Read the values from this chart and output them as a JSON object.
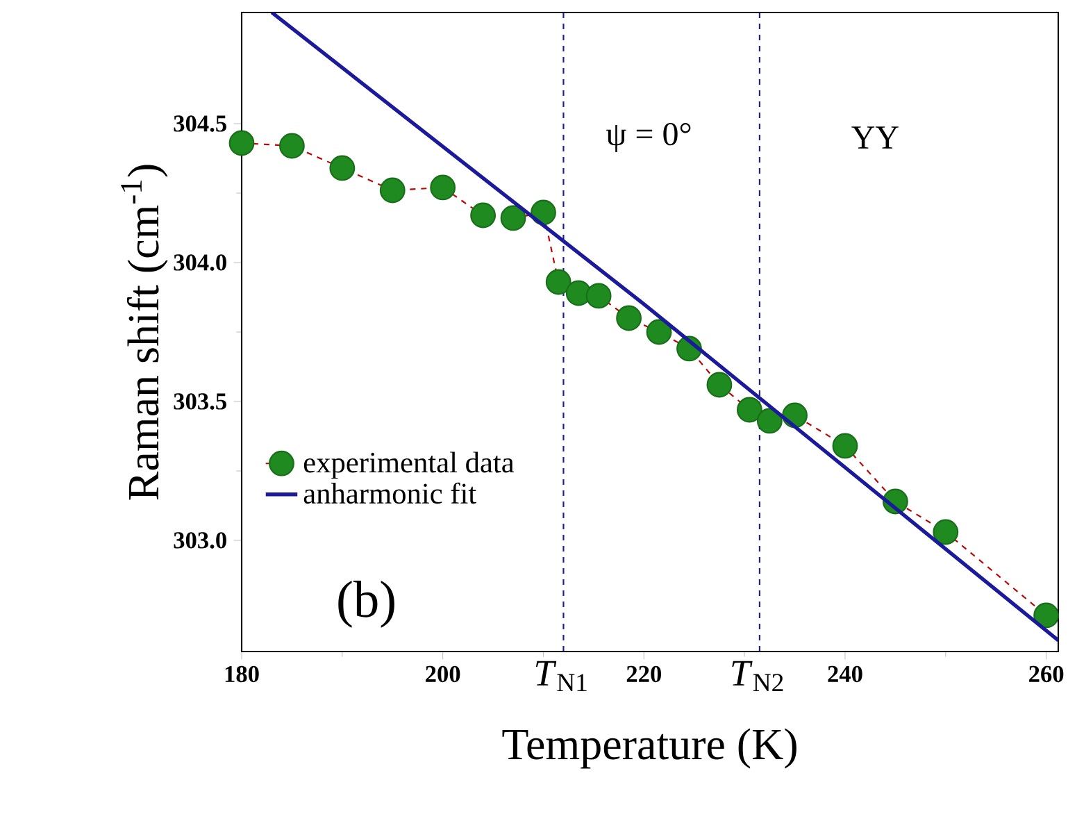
{
  "chart_data": {
    "type": "line",
    "xlabel": "Temperature (K)",
    "ylabel": "Raman shift (cm$^{-1}$)",
    "annotations": [
      "ψ = 0°",
      "YY",
      "(b)"
    ],
    "xlim": [
      180,
      261.2
    ],
    "ylim": [
      302.6,
      304.9
    ],
    "xticks": [
      180,
      200,
      220,
      240,
      260
    ],
    "yticks": [
      {
        "value": 303.0,
        "label": "303.0"
      },
      {
        "value": 303.5,
        "label": "303.5"
      },
      {
        "value": 304.0,
        "label": "304.0"
      },
      {
        "value": 304.5,
        "label": "304.5"
      }
    ],
    "ref_lines": [
      {
        "axis": "x",
        "value": 212,
        "label": "*T*$_{N1}$",
        "color": "#1a1a9a",
        "line_style": "dashed"
      },
      {
        "axis": "x",
        "value": 231.5,
        "label": "*T*$_{N2}$",
        "color": "#1a1a9a",
        "line_style": "dashed"
      }
    ],
    "legend": "left",
    "grid": false,
    "series": [
      {
        "name": "experimental data",
        "color": "#1f8a1f",
        "marker": "circle",
        "line_style": "dashed",
        "x": [
          180,
          185,
          190,
          195,
          200,
          204,
          207,
          210,
          211.5,
          213.5,
          215.5,
          218.5,
          221.5,
          224.5,
          227.5,
          230.5,
          232.5,
          235,
          240,
          245,
          250,
          260
        ],
        "values": [
          304.43,
          304.42,
          304.34,
          304.26,
          304.27,
          304.17,
          304.16,
          304.18,
          303.93,
          303.89,
          303.88,
          303.8,
          303.75,
          303.69,
          303.56,
          303.47,
          303.43,
          303.45,
          303.34,
          303.14,
          303.03,
          302.73
        ]
      },
      {
        "name": "anharmonic fit",
        "color": "#1a1a9a",
        "marker": "none",
        "line_style": "solid",
        "x": [
          183,
          220,
          261.2
        ],
        "values": [
          304.9,
          303.85,
          302.64
        ]
      }
    ]
  }
}
